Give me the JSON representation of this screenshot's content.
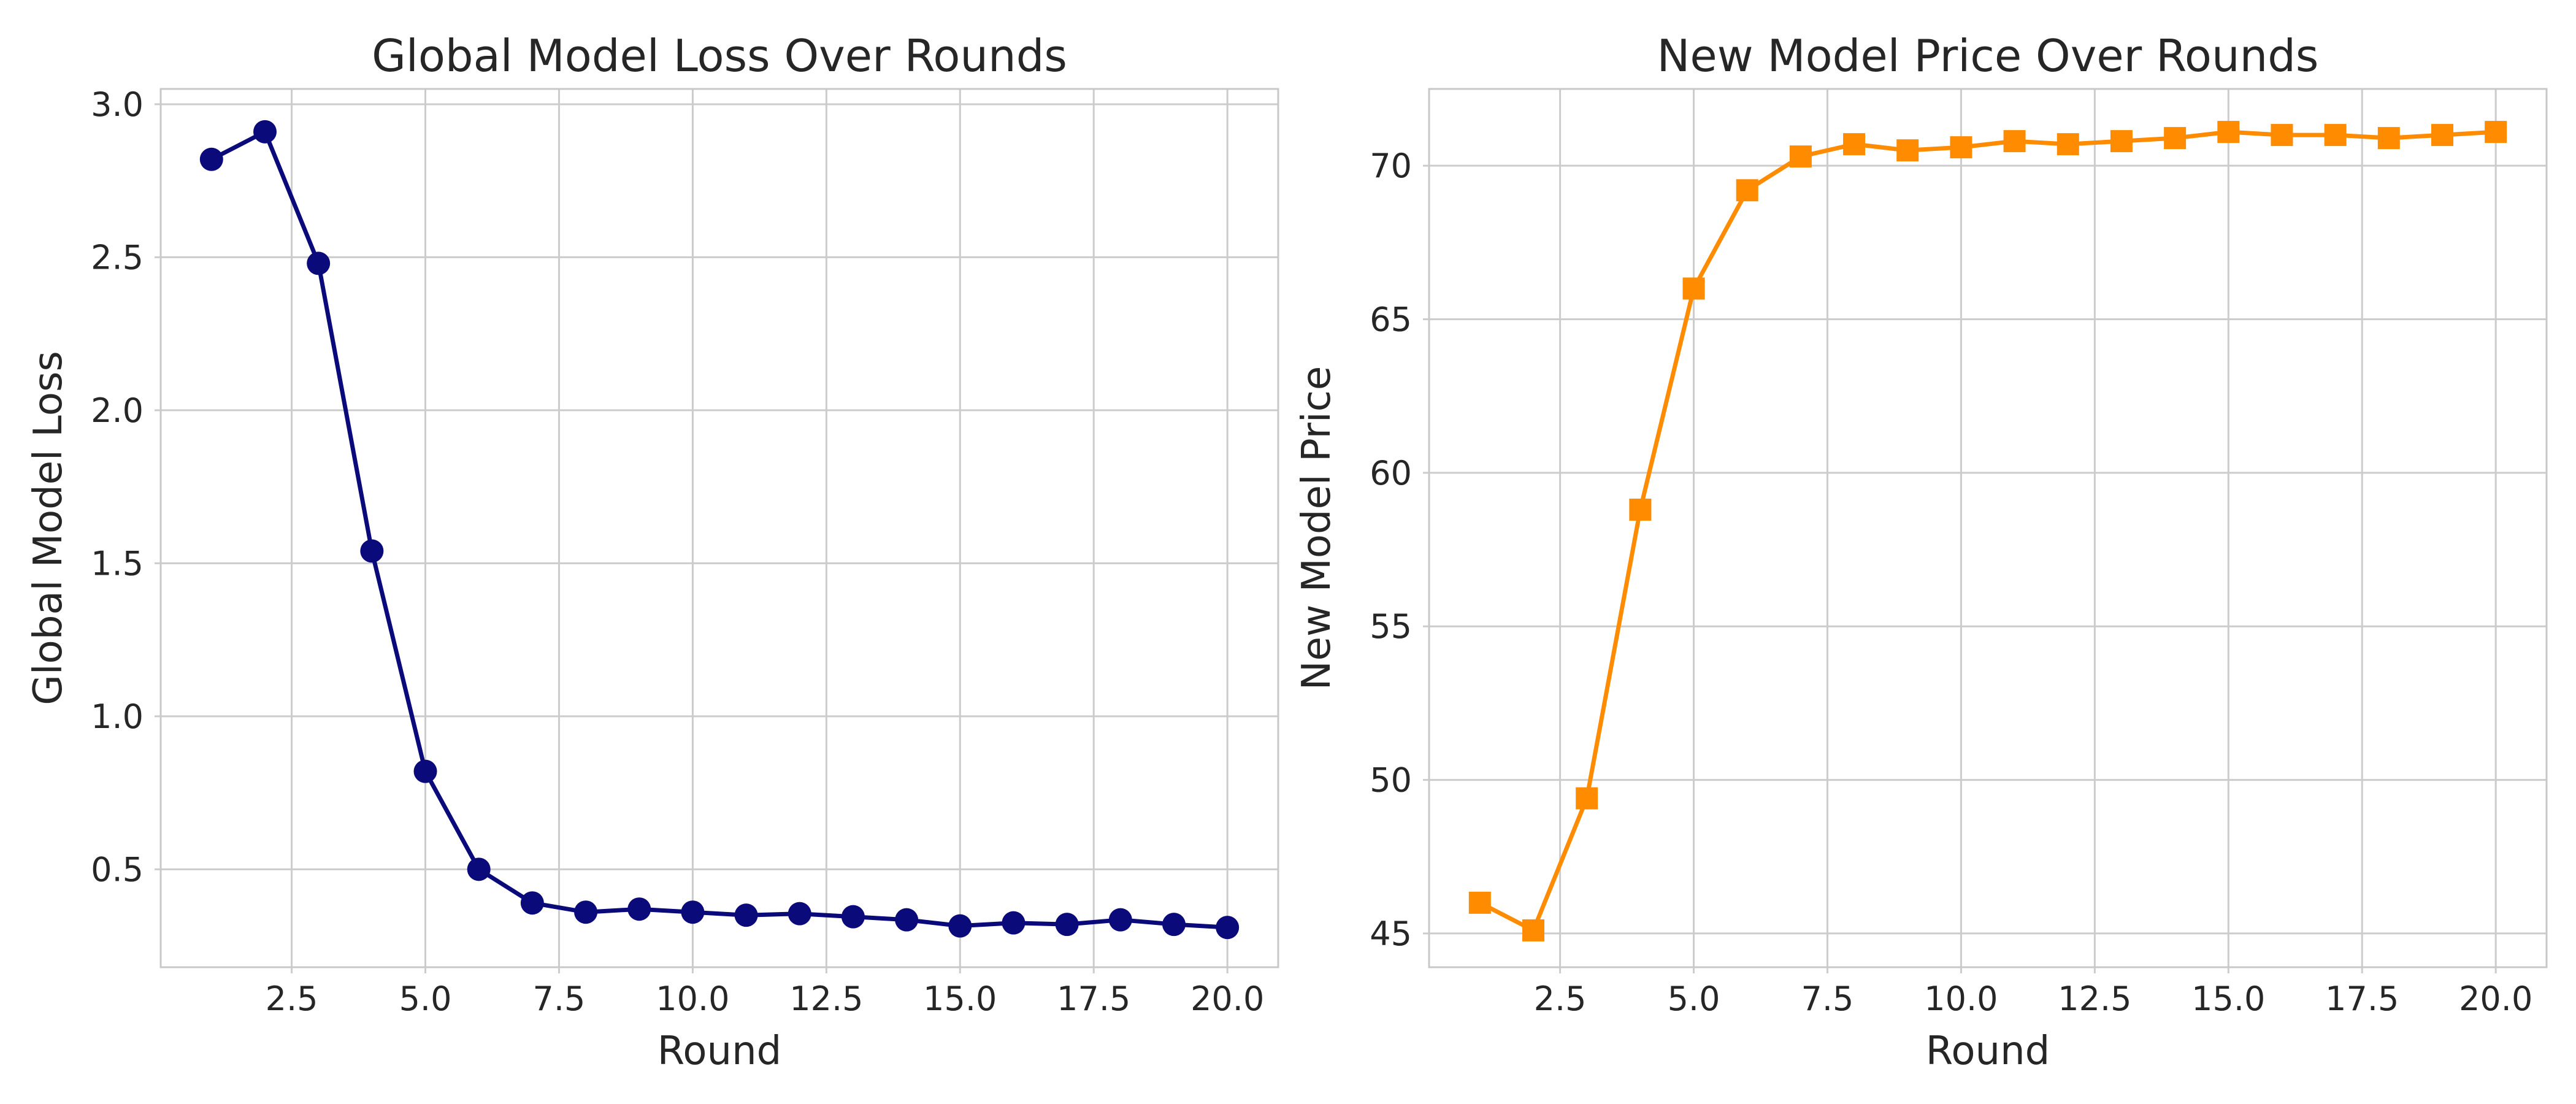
{
  "chart_data": [
    {
      "type": "line",
      "title": "Global Model Loss Over Rounds",
      "xlabel": "Round",
      "ylabel": "Global Model Loss",
      "xlim": [
        0.05,
        20.95
      ],
      "ylim": [
        0.18,
        3.05
      ],
      "xticks": [
        2.5,
        5.0,
        7.5,
        10.0,
        12.5,
        15.0,
        17.5,
        20.0
      ],
      "yticks": [
        0.5,
        1.0,
        1.5,
        2.0,
        2.5,
        3.0
      ],
      "xtick_labels": [
        "2.5",
        "5.0",
        "7.5",
        "10.0",
        "12.5",
        "15.0",
        "17.5",
        "20.0"
      ],
      "ytick_labels": [
        "0.5",
        "1.0",
        "1.5",
        "2.0",
        "2.5",
        "3.0"
      ],
      "grid": true,
      "marker": "circle",
      "color": "#0a0a7a",
      "series": [
        {
          "x": [
            1,
            2,
            3,
            4,
            5,
            6,
            7,
            8,
            9,
            10,
            11,
            12,
            13,
            14,
            15,
            16,
            17,
            18,
            19,
            20
          ],
          "values": [
            2.82,
            2.91,
            2.48,
            1.54,
            0.82,
            0.5,
            0.39,
            0.36,
            0.37,
            0.36,
            0.35,
            0.355,
            0.345,
            0.335,
            0.315,
            0.325,
            0.32,
            0.335,
            0.32,
            0.31
          ]
        }
      ]
    },
    {
      "type": "line",
      "title": "New Model Price Over Rounds",
      "xlabel": "Round",
      "ylabel": "New Model Price",
      "xlim": [
        0.05,
        20.95
      ],
      "ylim": [
        43.9,
        72.5
      ],
      "xticks": [
        2.5,
        5.0,
        7.5,
        10.0,
        12.5,
        15.0,
        17.5,
        20.0
      ],
      "yticks": [
        45,
        50,
        55,
        60,
        65,
        70
      ],
      "xtick_labels": [
        "2.5",
        "5.0",
        "7.5",
        "10.0",
        "12.5",
        "15.0",
        "17.5",
        "20.0"
      ],
      "ytick_labels": [
        "45",
        "50",
        "55",
        "60",
        "65",
        "70"
      ],
      "grid": true,
      "marker": "square",
      "color": "#ff8c00",
      "series": [
        {
          "x": [
            1,
            2,
            3,
            4,
            5,
            6,
            7,
            8,
            9,
            10,
            11,
            12,
            13,
            14,
            15,
            16,
            17,
            18,
            19,
            20
          ],
          "values": [
            46.0,
            45.1,
            49.4,
            58.8,
            66.0,
            69.2,
            70.3,
            70.7,
            70.5,
            70.6,
            70.8,
            70.7,
            70.8,
            70.9,
            71.1,
            71.0,
            71.0,
            70.9,
            71.0,
            71.1
          ]
        }
      ]
    }
  ]
}
